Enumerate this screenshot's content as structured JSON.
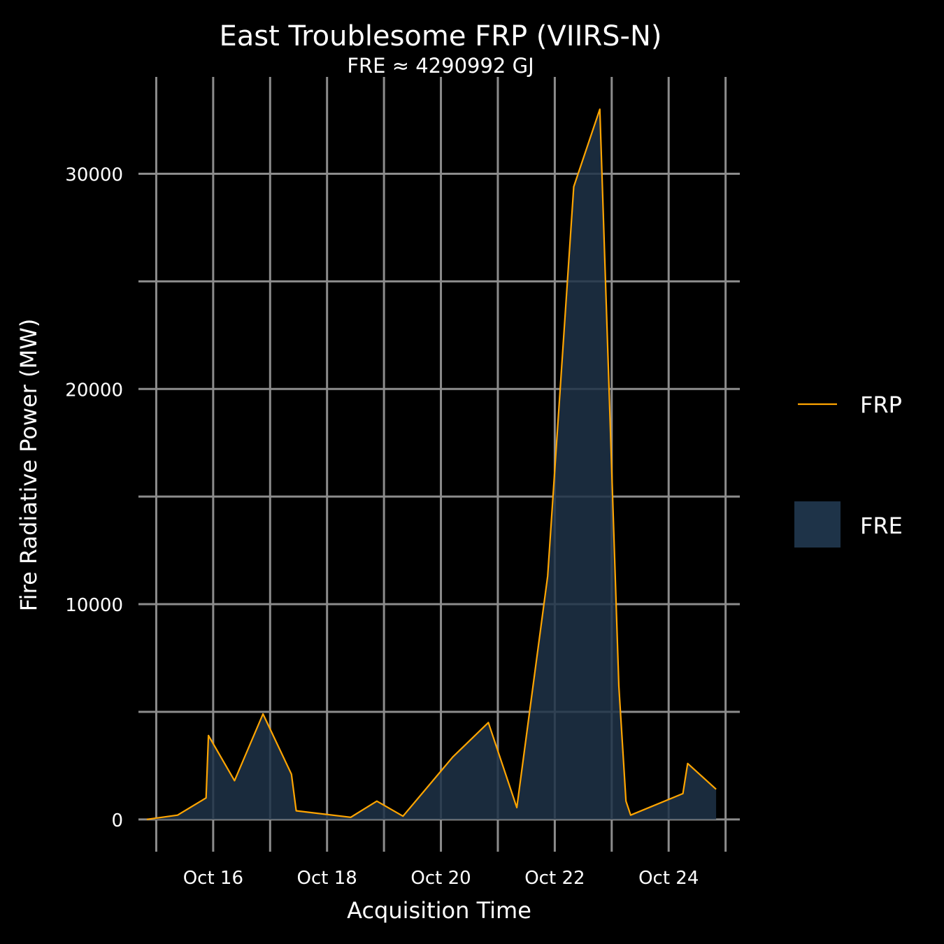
{
  "colors": {
    "background": "#000000",
    "grid": "#8c8c8c",
    "frp_line": "#ffa500",
    "fre_fill": "#1e3348"
  },
  "chart_data": {
    "type": "area",
    "title": "East Troublesome FRP (VIIRS-N)",
    "subtitle": "FRE ≈ 4290992 GJ",
    "xlabel": "Acquisition Time",
    "ylabel": "Fire Radiative Power (MW)",
    "x_ticks": [
      "Oct 16",
      "Oct 18",
      "Oct 20",
      "Oct 22",
      "Oct 24"
    ],
    "x_tick_dates": [
      "2020-10-16",
      "2020-10-18",
      "2020-10-20",
      "2020-10-22",
      "2020-10-24"
    ],
    "y_ticks": [
      "0",
      "10000",
      "20000",
      "30000"
    ],
    "y_tick_values": [
      0,
      10000,
      20000,
      30000
    ],
    "xlim": [
      "2020-10-14T16:30",
      "2020-10-25T06:00"
    ],
    "ylim": [
      -1500,
      34500
    ],
    "grid": true,
    "legend_position": "right",
    "series": [
      {
        "name": "FRP",
        "kind": "line",
        "x": [
          "2020-10-14T20:00",
          "2020-10-15T09:00",
          "2020-10-15T21:00",
          "2020-10-15T22:00",
          "2020-10-16T09:00",
          "2020-10-16T21:00",
          "2020-10-17T09:00",
          "2020-10-17T11:00",
          "2020-10-18T10:00",
          "2020-10-18T21:00",
          "2020-10-19T08:00",
          "2020-10-20T05:00",
          "2020-10-20T20:00",
          "2020-10-21T08:00",
          "2020-10-21T21:00",
          "2020-10-22T08:00",
          "2020-10-22T19:00",
          "2020-10-23T03:00",
          "2020-10-23T06:00",
          "2020-10-23T08:00",
          "2020-10-24T06:00",
          "2020-10-24T08:00",
          "2020-10-24T20:00"
        ],
        "values": [
          0,
          200,
          1000,
          3900,
          1800,
          4900,
          2100,
          400,
          100,
          850,
          150,
          2900,
          4500,
          550,
          11300,
          29400,
          33000,
          6200,
          850,
          200,
          1200,
          2600,
          1400
        ]
      },
      {
        "name": "FRE",
        "kind": "area",
        "note_values": "same as FRP"
      }
    ]
  }
}
